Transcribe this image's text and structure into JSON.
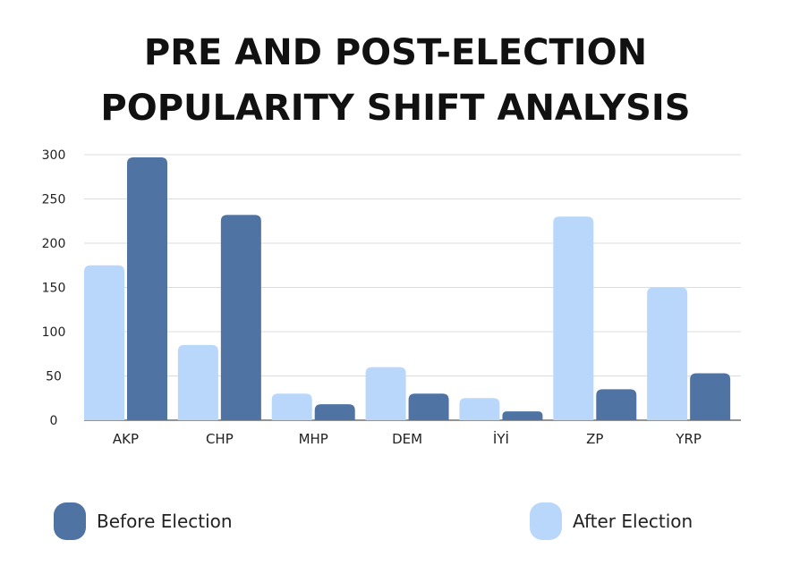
{
  "chart_data": {
    "type": "bar",
    "title": "PRE AND POST-ELECTION POPULARITY SHIFT ANALYSIS",
    "title_lines": [
      "PRE AND POST-ELECTION",
      "POPULARITY SHIFT ANALYSIS"
    ],
    "categories": [
      "AKP",
      "CHP",
      "MHP",
      "DEM",
      "İYİ",
      "ZP",
      "YRP"
    ],
    "series": [
      {
        "name": "After Election",
        "color": "#b9d7fb",
        "values": [
          175,
          85,
          30,
          60,
          25,
          230,
          150
        ]
      },
      {
        "name": "Before Election",
        "color": "#4f74a3",
        "values": [
          297,
          232,
          18,
          30,
          10,
          35,
          53
        ]
      }
    ],
    "ylim": [
      0,
      300
    ],
    "yticks": [
      0,
      50,
      100,
      150,
      200,
      250,
      300
    ],
    "grid": true,
    "legend_placement": "bottom"
  },
  "legend": [
    {
      "label": "Before Election",
      "color": "#4f74a3"
    },
    {
      "label": "After Election",
      "color": "#b9d7fb"
    }
  ]
}
